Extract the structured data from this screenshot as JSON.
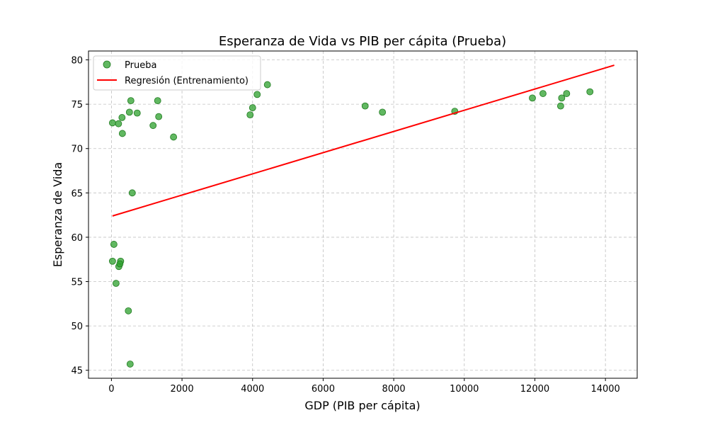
{
  "chart_data": {
    "type": "scatter",
    "title": "Esperanza de Vida vs PIB per cápita (Prueba)",
    "xlabel": "GDP (PIB per cápita)",
    "ylabel": "Esperanza de Vida",
    "xlim": [
      -650,
      14900
    ],
    "ylim": [
      44.1,
      81.0
    ],
    "grid": true,
    "legend_position": "top-left",
    "x_ticks": [
      0,
      2000,
      4000,
      6000,
      8000,
      10000,
      12000,
      14000
    ],
    "y_ticks": [
      45,
      50,
      55,
      60,
      65,
      70,
      75,
      80
    ],
    "x_tick_labels": [
      "0",
      "2000",
      "4000",
      "6000",
      "8000",
      "10000",
      "12000",
      "14000"
    ],
    "y_tick_labels": [
      "45",
      "50",
      "55",
      "60",
      "65",
      "70",
      "75",
      "80"
    ],
    "series": [
      {
        "name": "Prueba",
        "kind": "scatter",
        "color": "#2ca02c",
        "color_display": "#008000",
        "points": [
          [
            30,
            72.9
          ],
          [
            200,
            72.8
          ],
          [
            300,
            73.5
          ],
          [
            310,
            71.7
          ],
          [
            510,
            74.1
          ],
          [
            550,
            75.4
          ],
          [
            730,
            74.0
          ],
          [
            1180,
            72.6
          ],
          [
            1310,
            75.4
          ],
          [
            1340,
            73.6
          ],
          [
            1760,
            71.3
          ],
          [
            590,
            65.0
          ],
          [
            70,
            59.2
          ],
          [
            30,
            57.3
          ],
          [
            260,
            57.3
          ],
          [
            210,
            56.7
          ],
          [
            240,
            57.0
          ],
          [
            130,
            54.8
          ],
          [
            480,
            51.7
          ],
          [
            530,
            45.7
          ],
          [
            3930,
            73.8
          ],
          [
            4000,
            74.6
          ],
          [
            4130,
            76.1
          ],
          [
            4420,
            77.2
          ],
          [
            7190,
            74.8
          ],
          [
            7680,
            74.1
          ],
          [
            9730,
            74.2
          ],
          [
            11930,
            75.7
          ],
          [
            12230,
            76.2
          ],
          [
            12730,
            74.8
          ],
          [
            12760,
            75.7
          ],
          [
            12900,
            76.2
          ],
          [
            13560,
            76.4
          ]
        ]
      },
      {
        "name": "Regresión (Entrenamiento)",
        "kind": "line",
        "color": "#ff0000",
        "points": [
          [
            30,
            62.4
          ],
          [
            14250,
            79.4
          ]
        ]
      }
    ]
  }
}
